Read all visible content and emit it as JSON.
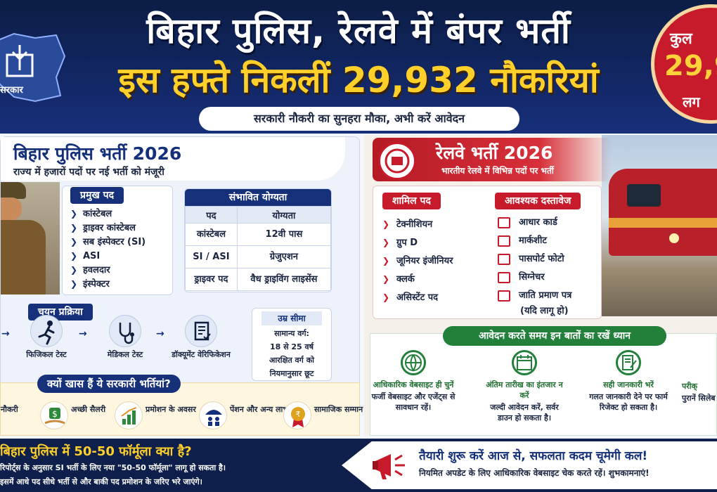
{
  "header": {
    "title_line1": "बिहार पुलिस, रेलवे में बंपर भर्ती",
    "title_line2": "इस हफ्ते निकलीं 29,932 नौकरियां",
    "subtitle": "सरकारी नौकरी का सुनहरा मौका, अभी करें आवेदन",
    "logo_text": "सरकार",
    "badge_line1": "कुल",
    "badge_line2": "29,9",
    "badge_line3": "लग"
  },
  "police": {
    "title": "बिहार पुलिस भर्ती 2026",
    "subtitle": "राज्य में हजारों पदों पर नई भर्ती को मंजूरी",
    "posts_tag": "प्रमुख पद",
    "posts": [
      "कांस्टेबल",
      "ड्राइवर कांस्टेबल",
      "सब इंस्पेक्टर (SI)",
      "ASI",
      "हवलदार",
      "इंस्पेक्टर"
    ],
    "qualification": {
      "title": "संभावित योग्यता",
      "headers": [
        "पद",
        "योग्यता"
      ],
      "rows": [
        [
          "कांस्टेबल",
          "12वी पास"
        ],
        [
          "SI / ASI",
          "ग्रेजुएशन"
        ],
        [
          "ड्राइवर पद",
          "वैध ड्राइविंग लाइसेंस"
        ]
      ]
    },
    "selection_tag": "चयन प्रक्रिया",
    "steps": [
      "फिजिकल टेस्ट",
      "मेडिकल टेस्ट",
      "डॉक्यूमेंट वेरिफिकेशन"
    ],
    "age": {
      "title": "उम्र सीमा",
      "lines": [
        "सामान्य वर्ग:",
        "18 से 25 वर्ष",
        "आरक्षित वर्ग को",
        "नियमानुसार छूट"
      ]
    }
  },
  "why": {
    "title": "क्यों खास हैं ये सरकारी भर्तियां?",
    "items": [
      "नौकरी",
      "अच्छी सैलरी",
      "प्रमोशन के अवसर",
      "पेंशन और अन्य लाभ",
      "सामाजिक सम्मान"
    ]
  },
  "railway": {
    "title": "रेलवे भर्ती 2026",
    "subtitle": "भारतीय रेलवे में विभिन्न पदों पर भर्ती",
    "posts_tag": "शामिल पद",
    "posts": [
      "टेक्नीशियन",
      "ग्रुप D",
      "जूनियर इंजीनियर",
      "क्लर्क",
      "असिस्टेंट पद"
    ],
    "docs_tag": "आवश्यक दस्तावेज",
    "docs": [
      "आधार कार्ड",
      "मार्कशीट",
      "पासपोर्ट फोटो",
      "सिग्नेचर",
      "जाति प्रमाण पत्र",
      "(यदि लागू हो)"
    ]
  },
  "tips": {
    "title": "आवेदन करते समय इन बातों का रखें ध्यान",
    "items": [
      {
        "head": "आधिकारिक वेबसाइट ही चुनें",
        "desc": "फर्जी वेबसाइट और एजेंट्स से सावधान रहें।"
      },
      {
        "head": "अंतिम तारीख का इंतजार न करें",
        "desc": "जल्दी आवेदन करें, सर्वर डाउन हो सकता है।"
      },
      {
        "head": "सही जानकारी भरें",
        "desc": "गलत जानकारी देने पर फार्म रिजेक्ट हो सकता है।"
      },
      {
        "head": "परीक्",
        "desc": "पुरानें सिलेब"
      }
    ]
  },
  "footer": {
    "left_title": "बिहार पुलिस में 50-50 फॉर्मूला क्या है?",
    "left_line1": "रिपोर्ट्स के अनुसार SI भर्ती के लिए नया \"50-50 फॉर्मूला\" लागू हो सकता है।",
    "left_line2": "इसमें आधे पद सीधे भर्ती से और बाकी पद प्रमोशन के जरिए भरे जाएंगे।",
    "right_title": "तैयारी शुरू करें आज से, सफलता कदम चूमेगी कल!",
    "right_sub": "नियमित अपडेट के लिए आधिकारिक वेबसाइट चेक करते रहें।  शुभकामनाएं!"
  }
}
